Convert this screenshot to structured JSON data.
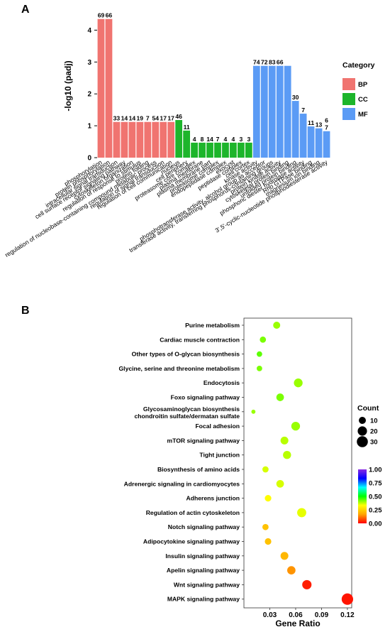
{
  "panel_a_label": "A",
  "panel_b_label": "B",
  "chart_data": [
    {
      "type": "bar",
      "title": "",
      "xlabel": "",
      "ylabel": "-log10 (padj)",
      "ylim": [
        0,
        4.5
      ],
      "yticks": [
        0,
        1,
        2,
        3,
        4
      ],
      "grid": false,
      "legend_title": "Category",
      "legend_position": "right",
      "groups": [
        {
          "name": "BP",
          "color": "#F07470"
        },
        {
          "name": "CC",
          "color": "#1DB52B"
        },
        {
          "name": "MF",
          "color": "#5B9BF5"
        }
      ],
      "categories": [
        "phosphorylation",
        "protein phosphorylation",
        "intracellular signal transduction",
        "cell surface receptor signaling pathway",
        "cytoskeleton organization",
        "regulation of response to stimulus",
        "protein folding",
        "regulation of nucleobase-containing compound metabolic process",
        "regulation of signal transduction",
        "regulation of cell communication",
        "nucleus",
        "cell periphery",
        "proteasome core complex",
        "plasma membrane",
        "plasma membrane part",
        "proteasome complex",
        "endopeptidase complex",
        "exocyst",
        "peptidase complex",
        "cell cortex",
        "kinase activity",
        "phosphotransferase activity, alcohol group as acceptor",
        "transferase activity, transferring phosphorus-containing groups",
        "protein kinase activity",
        "cytoskeletal protein binding",
        "unfolded protein binding",
        "phosphoric diester hydrolase activity",
        "Rho GTPase binding",
        "magnesium ion binding",
        "3',5'-cyclic-nucleotide phosphodiesterase activity"
      ],
      "group_of_category": [
        "BP",
        "BP",
        "BP",
        "BP",
        "BP",
        "BP",
        "BP",
        "BP",
        "BP",
        "BP",
        "CC",
        "CC",
        "CC",
        "CC",
        "CC",
        "CC",
        "CC",
        "CC",
        "CC",
        "CC",
        "MF",
        "MF",
        "MF",
        "MF",
        "MF",
        "MF",
        "MF",
        "MF",
        "MF",
        "MF"
      ],
      "values": [
        4.35,
        4.35,
        1.12,
        1.12,
        1.12,
        1.12,
        1.12,
        1.12,
        1.12,
        1.12,
        1.18,
        0.85,
        0.47,
        0.47,
        0.47,
        0.47,
        0.47,
        0.47,
        0.47,
        0.47,
        2.88,
        2.88,
        2.88,
        2.88,
        2.88,
        1.78,
        1.38,
        0.98,
        0.92,
        0.83
      ],
      "counts": [
        "69",
        "66",
        "33",
        "14",
        "14",
        "19",
        "7",
        "54",
        "17",
        "17",
        "46",
        "11",
        "4",
        "8",
        "14",
        "7",
        "4",
        "4",
        "3",
        "3",
        "74",
        "72",
        "83",
        "66",
        "",
        "30",
        "7",
        "11",
        "13",
        "7"
      ],
      "extra_labels": [
        {
          "text": "6",
          "category_index": 29
        }
      ]
    },
    {
      "type": "scatter",
      "title": "",
      "xlabel": "Gene Ratio",
      "ylabel": "",
      "xlim": [
        0,
        0.125
      ],
      "xticks": [
        "0.03",
        "0.06",
        "0.09",
        "0.12"
      ],
      "xtick_values": [
        0.03,
        0.06,
        0.09,
        0.12
      ],
      "grid": false,
      "size_legend_title": "Count",
      "size_legend": [
        "10",
        "20",
        "30"
      ],
      "size_legend_values": [
        10,
        20,
        30
      ],
      "color_scale": {
        "min": 0,
        "max": 1,
        "ticks": [
          "1.00",
          "0.75",
          "0.50",
          "0.25",
          "0.00"
        ],
        "colors": [
          "#ff0000",
          "#ffa500",
          "#ffff00",
          "#00ff00",
          "#00ffff",
          "#0000ff",
          "#8a2be2"
        ]
      },
      "pathways": [
        "Purine metabolism",
        "Cardiac muscle contraction",
        "Other types of O-glycan biosynthesis",
        "Glycine, serine and threonine metabolism",
        "Endocytosis",
        "Foxo signaling pathway",
        "Glycosaminoglycan biosynthesis",
        "Focal adhesion",
        "mTOR signaling pathway",
        "Tight junction",
        "Biosynthesis of amino acids",
        "Adrenergic signaling in cardiomyocytes",
        "Adherens junction",
        "Regulation of actin cytoskeleton",
        "Notch signaling pathway",
        "Adipocytokine signaling pathway",
        "Insulin signaling pathway",
        "Apelin signaling pathway",
        "Wnt signaling pathway",
        "MAPK signaling pathway"
      ],
      "pathway_second_line": {
        "6": "chondroitin sulfate/dermatan sulfate"
      },
      "gene_ratio": [
        0.038,
        0.022,
        0.018,
        0.018,
        0.063,
        0.042,
        0.011,
        0.06,
        0.047,
        0.05,
        0.025,
        0.042,
        0.028,
        0.067,
        0.025,
        0.028,
        0.047,
        0.055,
        0.073,
        0.12
      ],
      "count": [
        10,
        7,
        5,
        5,
        17,
        12,
        2,
        17,
        13,
        14,
        7,
        12,
        8,
        19,
        7,
        8,
        13,
        15,
        20,
        33
      ],
      "padj": [
        0.4,
        0.42,
        0.44,
        0.42,
        0.4,
        0.42,
        0.4,
        0.4,
        0.38,
        0.38,
        0.36,
        0.36,
        0.33,
        0.35,
        0.22,
        0.22,
        0.2,
        0.15,
        0.03,
        0.02
      ]
    }
  ]
}
